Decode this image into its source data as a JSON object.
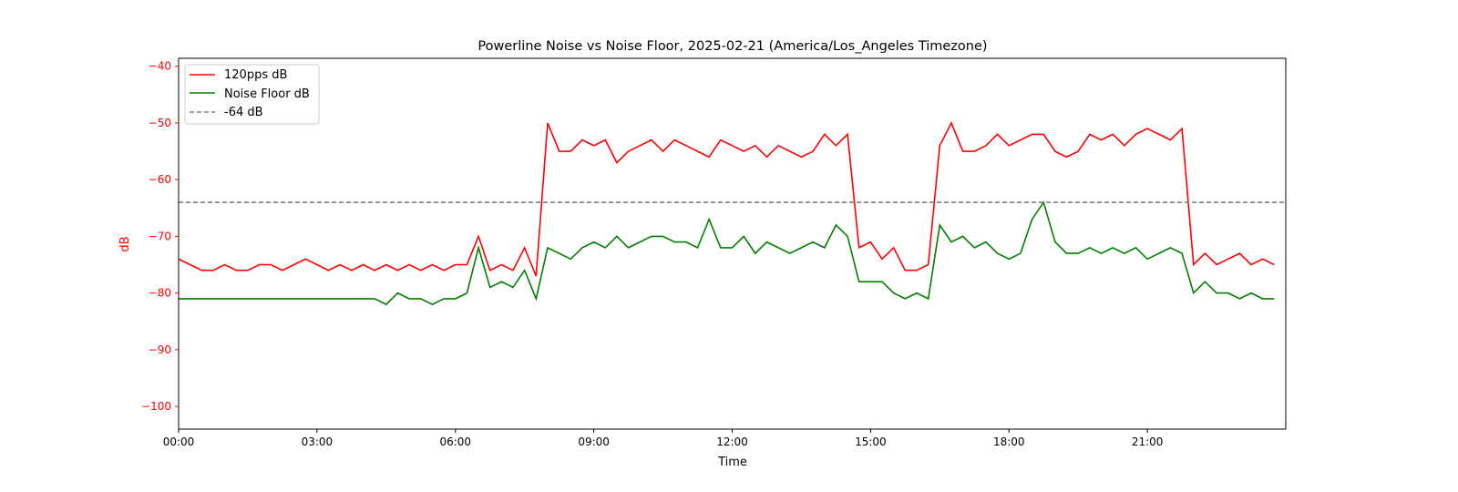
{
  "chart_data": {
    "type": "line",
    "title": "Powerline Noise vs Noise Floor, 2025-02-21 (America/Los_Angeles Timezone)",
    "xlabel": "Time",
    "ylabel": "dB",
    "xlim_hours": [
      0,
      24
    ],
    "ylim": [
      -104,
      -38.6
    ],
    "x_ticks": [
      "00:00",
      "03:00",
      "06:00",
      "09:00",
      "12:00",
      "15:00",
      "18:00",
      "21:00"
    ],
    "x_tick_hours": [
      0,
      3,
      6,
      9,
      12,
      15,
      18,
      21
    ],
    "y_ticks": [
      -40,
      -50,
      -60,
      -70,
      -80,
      -90,
      -100
    ],
    "y_tick_labels": [
      "−40",
      "−50",
      "−60",
      "−70",
      "−80",
      "−90",
      "−100"
    ],
    "grid": false,
    "legend_placement": "top-left",
    "x_step_hours": 0.25,
    "series": [
      {
        "name": "120pps dB",
        "color": "#ff0000",
        "style": "solid",
        "values": [
          -74,
          -75,
          -76,
          -76,
          -75,
          -76,
          -76,
          -75,
          -75,
          -76,
          -75,
          -74,
          -75,
          -76,
          -75,
          -76,
          -75,
          -76,
          -75,
          -76,
          -75,
          -76,
          -75,
          -76,
          -75,
          -75,
          -70,
          -76,
          -75,
          -76,
          -72,
          -77,
          -50,
          -55,
          -55,
          -53,
          -54,
          -53,
          -57,
          -55,
          -54,
          -53,
          -55,
          -53,
          -54,
          -55,
          -56,
          -53,
          -54,
          -55,
          -54,
          -56,
          -54,
          -55,
          -56,
          -55,
          -52,
          -54,
          -52,
          -72,
          -71,
          -74,
          -72,
          -76,
          -76,
          -75,
          -54,
          -50,
          -55,
          -55,
          -54,
          -52,
          -54,
          -53,
          -52,
          -52,
          -55,
          -56,
          -55,
          -52,
          -53,
          -52,
          -54,
          -52,
          -51,
          -52,
          -53,
          -51,
          -75,
          -73,
          -75,
          -74,
          -73,
          -75,
          -74,
          -75
        ]
      },
      {
        "name": "Noise Floor dB",
        "color": "#008000",
        "style": "solid",
        "values": [
          -81,
          -81,
          -81,
          -81,
          -81,
          -81,
          -81,
          -81,
          -81,
          -81,
          -81,
          -81,
          -81,
          -81,
          -81,
          -81,
          -81,
          -81,
          -82,
          -80,
          -81,
          -81,
          -82,
          -81,
          -81,
          -80,
          -72,
          -79,
          -78,
          -79,
          -76,
          -81,
          -72,
          -73,
          -74,
          -72,
          -71,
          -72,
          -70,
          -72,
          -71,
          -70,
          -70,
          -71,
          -71,
          -72,
          -67,
          -72,
          -72,
          -70,
          -73,
          -71,
          -72,
          -73,
          -72,
          -71,
          -72,
          -68,
          -70,
          -78,
          -78,
          -78,
          -80,
          -81,
          -80,
          -81,
          -68,
          -71,
          -70,
          -72,
          -71,
          -73,
          -74,
          -73,
          -67,
          -64,
          -71,
          -73,
          -73,
          -72,
          -73,
          -72,
          -73,
          -72,
          -74,
          -73,
          -72,
          -73,
          -80,
          -78,
          -80,
          -80,
          -81,
          -80,
          -81,
          -81
        ]
      },
      {
        "name": "-64 dB",
        "color": "#808080",
        "style": "dashed",
        "constant": -64
      }
    ],
    "tick_color_y": "#ff0000"
  }
}
